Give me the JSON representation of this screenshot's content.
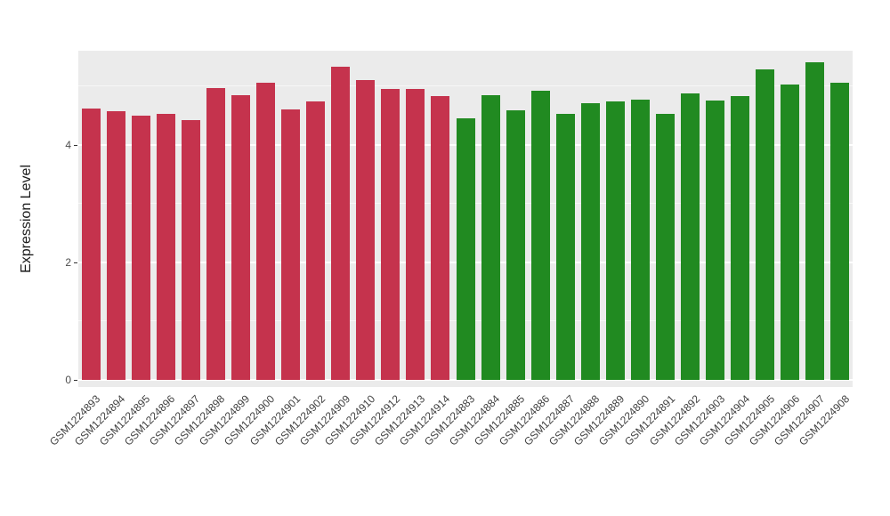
{
  "chart_data": {
    "type": "bar",
    "title": "",
    "xlabel": "",
    "ylabel": "Expression Level",
    "ylim": [
      0,
      5.6
    ],
    "yticks": [
      0,
      2,
      4
    ],
    "yminorticks": [
      1,
      3,
      5
    ],
    "grid": "white major and minor horizontal gridlines on gray panel",
    "legend_position": "none",
    "group_colors": {
      "red_group": "#C5334D",
      "green_group": "#218A21"
    },
    "bars": [
      {
        "label": "GSM1224893",
        "value": 4.62,
        "group": "red_group"
      },
      {
        "label": "GSM1224894",
        "value": 4.57,
        "group": "red_group"
      },
      {
        "label": "GSM1224895",
        "value": 4.5,
        "group": "red_group"
      },
      {
        "label": "GSM1224896",
        "value": 4.53,
        "group": "red_group"
      },
      {
        "label": "GSM1224897",
        "value": 4.42,
        "group": "red_group"
      },
      {
        "label": "GSM1224898",
        "value": 4.97,
        "group": "red_group"
      },
      {
        "label": "GSM1224899",
        "value": 4.85,
        "group": "red_group"
      },
      {
        "label": "GSM1224900",
        "value": 5.05,
        "group": "red_group"
      },
      {
        "label": "GSM1224901",
        "value": 4.6,
        "group": "red_group"
      },
      {
        "label": "GSM1224902",
        "value": 4.73,
        "group": "red_group"
      },
      {
        "label": "GSM1224909",
        "value": 5.32,
        "group": "red_group"
      },
      {
        "label": "GSM1224910",
        "value": 5.1,
        "group": "red_group"
      },
      {
        "label": "GSM1224912",
        "value": 4.95,
        "group": "red_group"
      },
      {
        "label": "GSM1224913",
        "value": 4.95,
        "group": "red_group"
      },
      {
        "label": "GSM1224914",
        "value": 4.83,
        "group": "red_group"
      },
      {
        "label": "GSM1224883",
        "value": 4.45,
        "group": "green_group"
      },
      {
        "label": "GSM1224884",
        "value": 4.85,
        "group": "green_group"
      },
      {
        "label": "GSM1224885",
        "value": 4.58,
        "group": "green_group"
      },
      {
        "label": "GSM1224886",
        "value": 4.92,
        "group": "green_group"
      },
      {
        "label": "GSM1224887",
        "value": 4.53,
        "group": "green_group"
      },
      {
        "label": "GSM1224888",
        "value": 4.7,
        "group": "green_group"
      },
      {
        "label": "GSM1224889",
        "value": 4.73,
        "group": "green_group"
      },
      {
        "label": "GSM1224890",
        "value": 4.77,
        "group": "green_group"
      },
      {
        "label": "GSM1224891",
        "value": 4.52,
        "group": "green_group"
      },
      {
        "label": "GSM1224892",
        "value": 4.87,
        "group": "green_group"
      },
      {
        "label": "GSM1224903",
        "value": 4.75,
        "group": "green_group"
      },
      {
        "label": "GSM1224904",
        "value": 4.83,
        "group": "green_group"
      },
      {
        "label": "GSM1224905",
        "value": 5.28,
        "group": "green_group"
      },
      {
        "label": "GSM1224906",
        "value": 5.03,
        "group": "green_group"
      },
      {
        "label": "GSM1224907",
        "value": 5.4,
        "group": "green_group"
      },
      {
        "label": "GSM1224908",
        "value": 5.05,
        "group": "green_group"
      }
    ]
  },
  "style": {
    "panel_background": "#EBEBEB",
    "grid_color": "#FFFFFF",
    "axis_text_color": "#4D4D4D"
  }
}
